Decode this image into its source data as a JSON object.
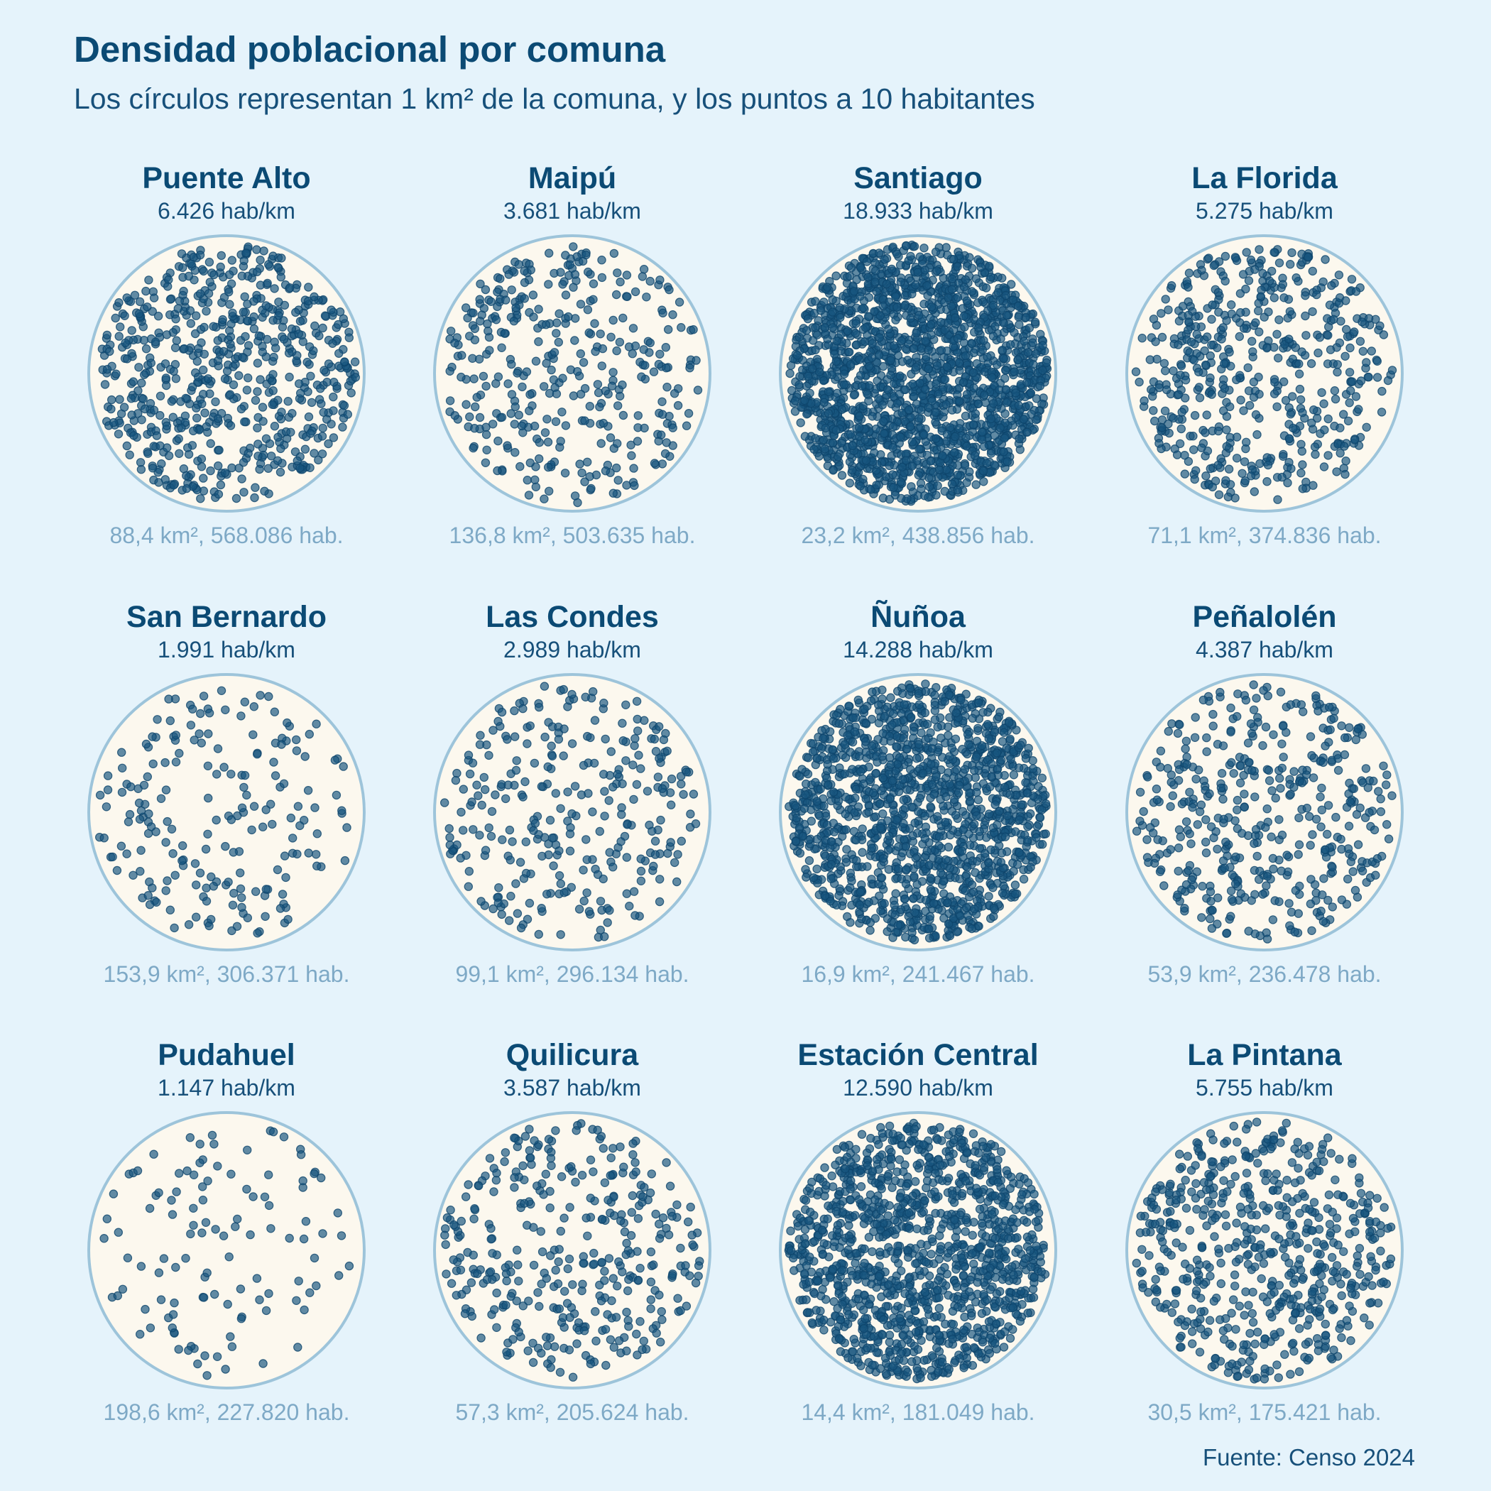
{
  "colors": {
    "background": "#e5f3fb",
    "title": "#0b4a74",
    "circle_fill": "#fcf8ee",
    "circle_stroke": "#9dc4da",
    "dot_fill": "#18557f",
    "dot_stroke": "#0e456c",
    "area_label": "#7ea9c6"
  },
  "chart_data": {
    "type": "scatter",
    "title": "Densidad poblacional por comuna",
    "subtitle": "Los círculos representan 1 km² de la comuna, y los puntos a 10 habitantes",
    "source": "Fuente: Censo 2024",
    "habitants_per_dot": 10,
    "comunas": [
      {
        "name": "Puente Alto",
        "density_label": "6.426 hab/km",
        "density": 6426,
        "area_label": "88,4 km², 568.086 hab.",
        "area_km2": 88.4,
        "population": 568086
      },
      {
        "name": "Maipú",
        "density_label": "3.681 hab/km",
        "density": 3681,
        "area_label": "136,8 km², 503.635 hab.",
        "area_km2": 136.8,
        "population": 503635
      },
      {
        "name": "Santiago",
        "density_label": "18.933 hab/km",
        "density": 18933,
        "area_label": "23,2 km², 438.856 hab.",
        "area_km2": 23.2,
        "population": 438856
      },
      {
        "name": "La Florida",
        "density_label": "5.275 hab/km",
        "density": 5275,
        "area_label": "71,1 km², 374.836 hab.",
        "area_km2": 71.1,
        "population": 374836
      },
      {
        "name": "San Bernardo",
        "density_label": "1.991 hab/km",
        "density": 1991,
        "area_label": "153,9 km², 306.371 hab.",
        "area_km2": 153.9,
        "population": 306371
      },
      {
        "name": "Las Condes",
        "density_label": "2.989 hab/km",
        "density": 2989,
        "area_label": "99,1 km², 296.134 hab.",
        "area_km2": 99.1,
        "population": 296134
      },
      {
        "name": "Ñuñoa",
        "density_label": "14.288 hab/km",
        "density": 14288,
        "area_label": "16,9 km², 241.467 hab.",
        "area_km2": 16.9,
        "population": 241467
      },
      {
        "name": "Peñalolén",
        "density_label": "4.387 hab/km",
        "density": 4387,
        "area_label": "53,9 km², 236.478 hab.",
        "area_km2": 53.9,
        "population": 236478
      },
      {
        "name": "Pudahuel",
        "density_label": "1.147 hab/km",
        "density": 1147,
        "area_label": "198,6 km², 227.820 hab.",
        "area_km2": 198.6,
        "population": 227820
      },
      {
        "name": "Quilicura",
        "density_label": "3.587 hab/km",
        "density": 3587,
        "area_label": "57,3 km², 205.624 hab.",
        "area_km2": 57.3,
        "population": 205624
      },
      {
        "name": "Estación Central",
        "density_label": "12.590 hab/km",
        "density": 12590,
        "area_label": "14,4 km², 181.049 hab.",
        "area_km2": 14.4,
        "population": 181049
      },
      {
        "name": "La Pintana",
        "density_label": "5.755 hab/km",
        "density": 5755,
        "area_label": "30,5 km², 175.421 hab.",
        "area_km2": 30.5,
        "population": 175421
      }
    ]
  }
}
